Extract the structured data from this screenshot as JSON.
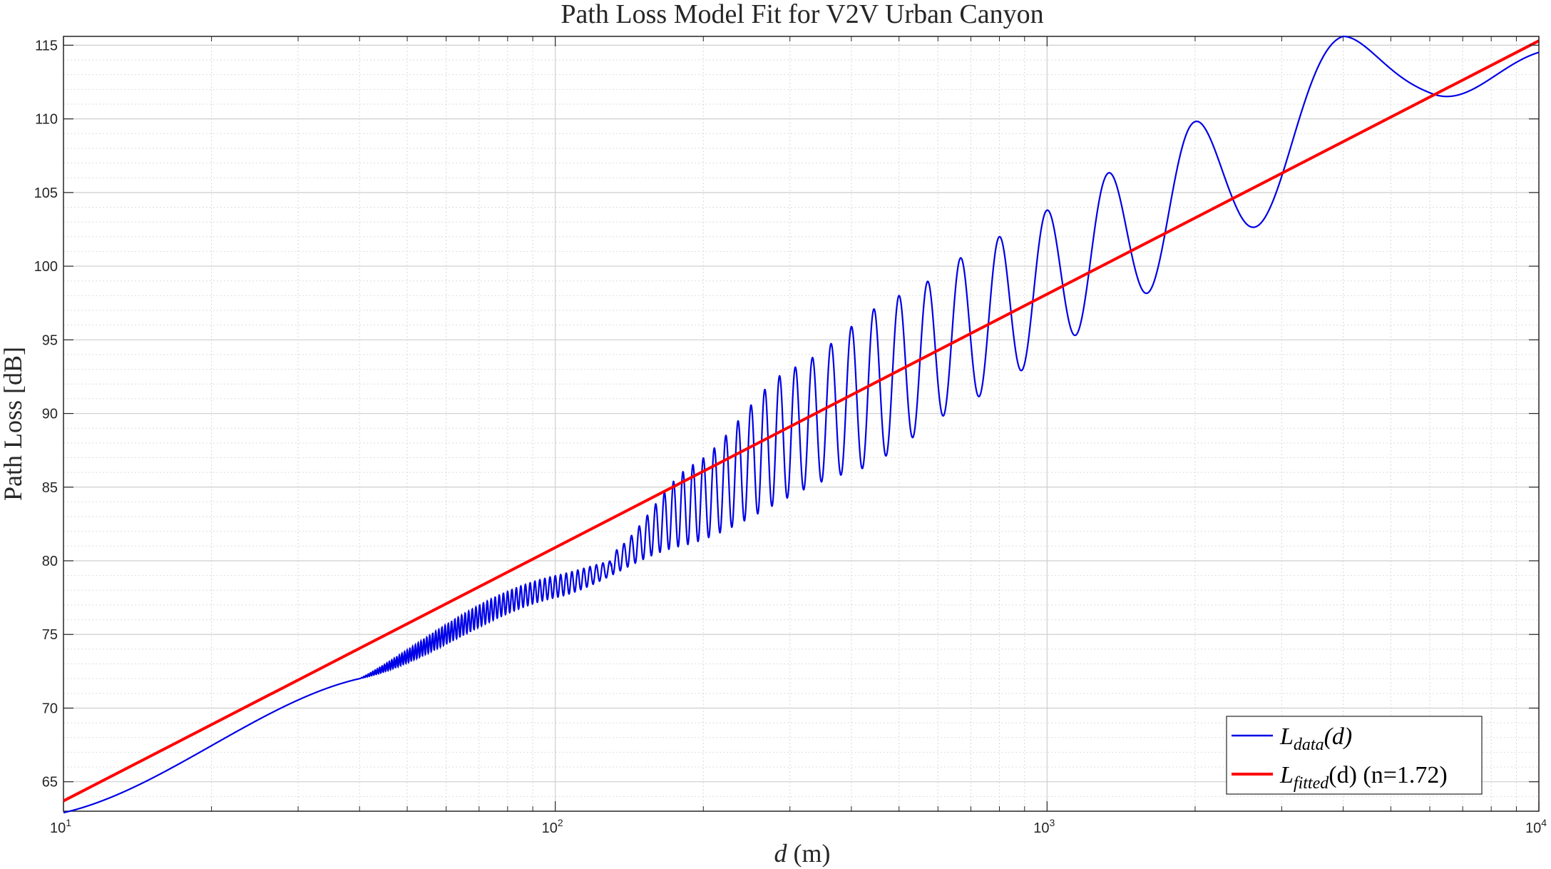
{
  "chart_data": {
    "type": "line",
    "title": "Path Loss Model Fit for V2V Urban Canyon",
    "xlabel": {
      "var": "d",
      "unit": " (m)"
    },
    "ylabel": "Path Loss [dB]",
    "xscale": "log",
    "xlim": [
      10,
      10000
    ],
    "ylim": [
      63,
      115.6
    ],
    "grid": true,
    "minor_grid": true,
    "legend_position": "bottom-right",
    "x_ticks": [
      {
        "base": "10",
        "exp": "1",
        "value": 10
      },
      {
        "base": "10",
        "exp": "2",
        "value": 100
      },
      {
        "base": "10",
        "exp": "3",
        "value": 1000
      },
      {
        "base": "10",
        "exp": "4",
        "value": 10000
      }
    ],
    "y_ticks": [
      65,
      70,
      75,
      80,
      85,
      90,
      95,
      100,
      105,
      110,
      115
    ],
    "series": [
      {
        "name": "L_data(d)",
        "legend_main": "L",
        "legend_sub": "data",
        "legend_rest": "(d)",
        "color": "#0000e6",
        "note": "oscillating measured path loss",
        "envelope_min": {
          "x": [
            10,
            40,
            100,
            180,
            400,
            750,
            1100,
            1550,
            2450,
            6000,
            10000
          ],
          "y": [
            62.9,
            72,
            77.5,
            81,
            86,
            91.3,
            95.1,
            98,
            102.2,
            110.5,
            114.4
          ]
        },
        "peaks": {
          "x": [
            130,
            190,
            300,
            500,
            800,
            1000,
            1300,
            1950,
            4000
          ],
          "y": [
            80.5,
            86.5,
            93,
            98,
            102,
            103.8,
            106.2,
            109.7,
            115.6
          ]
        }
      },
      {
        "name": "L_fitted(d) (n=1.72)",
        "legend_main": "L",
        "legend_sub": "fitted",
        "legend_rest": "(d) (n=1.72)",
        "color": "#ff0000",
        "x": [
          10,
          10000
        ],
        "y": [
          63.7,
          115.3
        ]
      }
    ]
  }
}
